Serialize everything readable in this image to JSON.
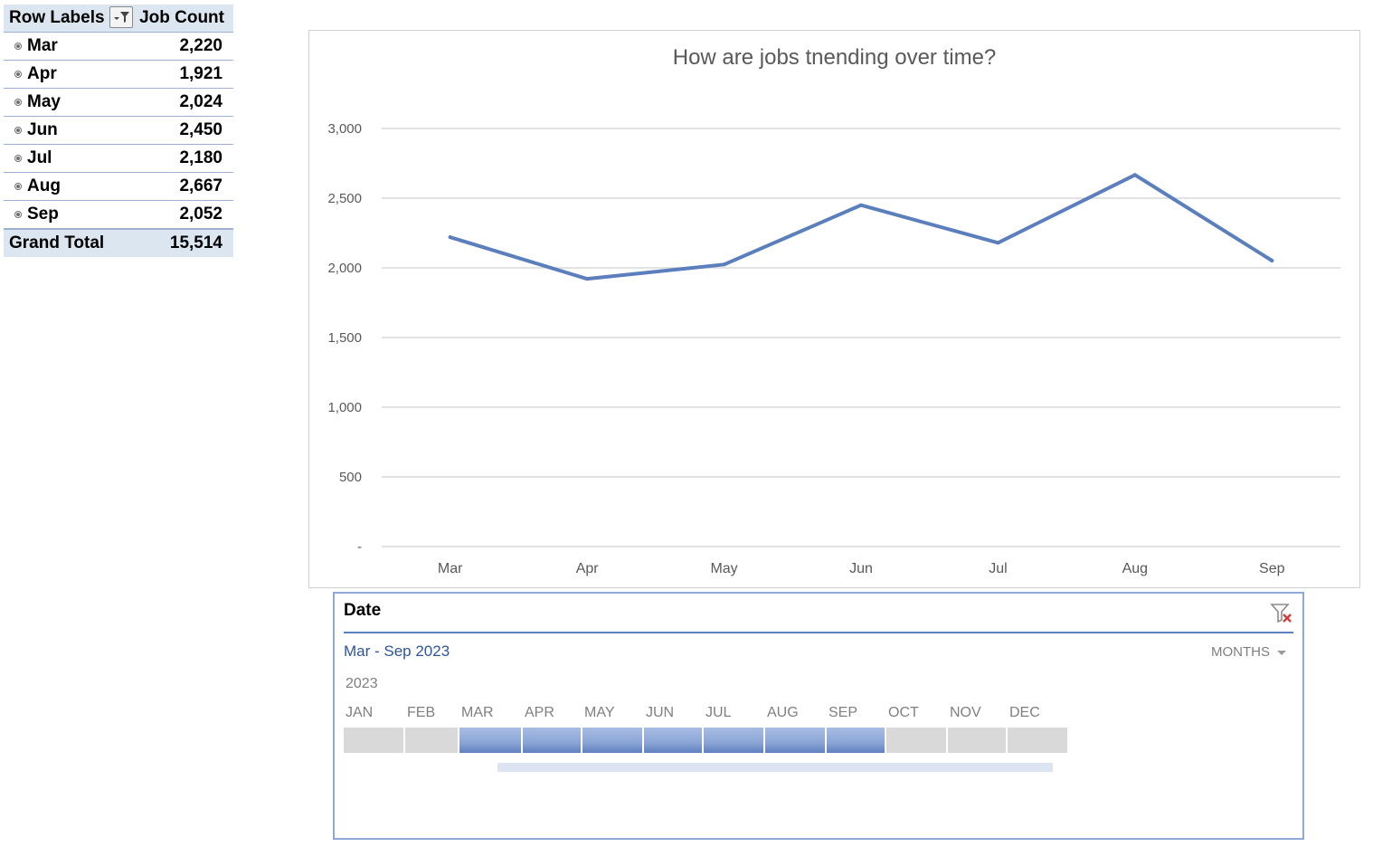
{
  "pivot": {
    "header": {
      "row_labels": "Row Labels",
      "value_label": "Job Count",
      "filter_icon": "filter-dropdown-icon"
    },
    "rows": [
      {
        "label": "Mar",
        "value": "2,220"
      },
      {
        "label": "Apr",
        "value": "1,921"
      },
      {
        "label": "May",
        "value": "2,024"
      },
      {
        "label": "Jun",
        "value": "2,450"
      },
      {
        "label": "Jul",
        "value": "2,180"
      },
      {
        "label": "Aug",
        "value": "2,667"
      },
      {
        "label": "Sep",
        "value": "2,052"
      }
    ],
    "total": {
      "label": "Grand Total",
      "value": "15,514"
    }
  },
  "chart_data": {
    "type": "line",
    "title": "How are jobs tnending over time?",
    "categories": [
      "Mar",
      "Apr",
      "May",
      "Jun",
      "Jul",
      "Aug",
      "Sep"
    ],
    "series": [
      {
        "values": [
          2220,
          1921,
          2024,
          2450,
          2180,
          2667,
          2052
        ]
      }
    ],
    "ylim": [
      0,
      3000
    ],
    "yticks": [
      {
        "value": 0,
        "label": "-"
      },
      {
        "value": 500,
        "label": "500"
      },
      {
        "value": 1000,
        "label": "1,000"
      },
      {
        "value": 1500,
        "label": "1,500"
      },
      {
        "value": 2000,
        "label": "2,000"
      },
      {
        "value": 2500,
        "label": "2,500"
      },
      {
        "value": 3000,
        "label": "3,000"
      }
    ],
    "grid": true,
    "legend": "none",
    "line_color": "#5b7fbd",
    "grid_color": "#d9d9d9",
    "label_color": "#595959"
  },
  "slicer": {
    "title": "Date",
    "range": "Mar - Sep 2023",
    "level": "MONTHS",
    "year": "2023",
    "clear_icon": "clear-filter-icon",
    "months": [
      {
        "label": "JAN",
        "selected": false
      },
      {
        "label": "FEB",
        "selected": false
      },
      {
        "label": "MAR",
        "selected": true
      },
      {
        "label": "APR",
        "selected": true
      },
      {
        "label": "MAY",
        "selected": true
      },
      {
        "label": "JUN",
        "selected": true
      },
      {
        "label": "JUL",
        "selected": true
      },
      {
        "label": "AUG",
        "selected": true
      },
      {
        "label": "SEP",
        "selected": true
      },
      {
        "label": "OCT",
        "selected": false
      },
      {
        "label": "NOV",
        "selected": false
      },
      {
        "label": "DEC",
        "selected": false
      }
    ]
  }
}
